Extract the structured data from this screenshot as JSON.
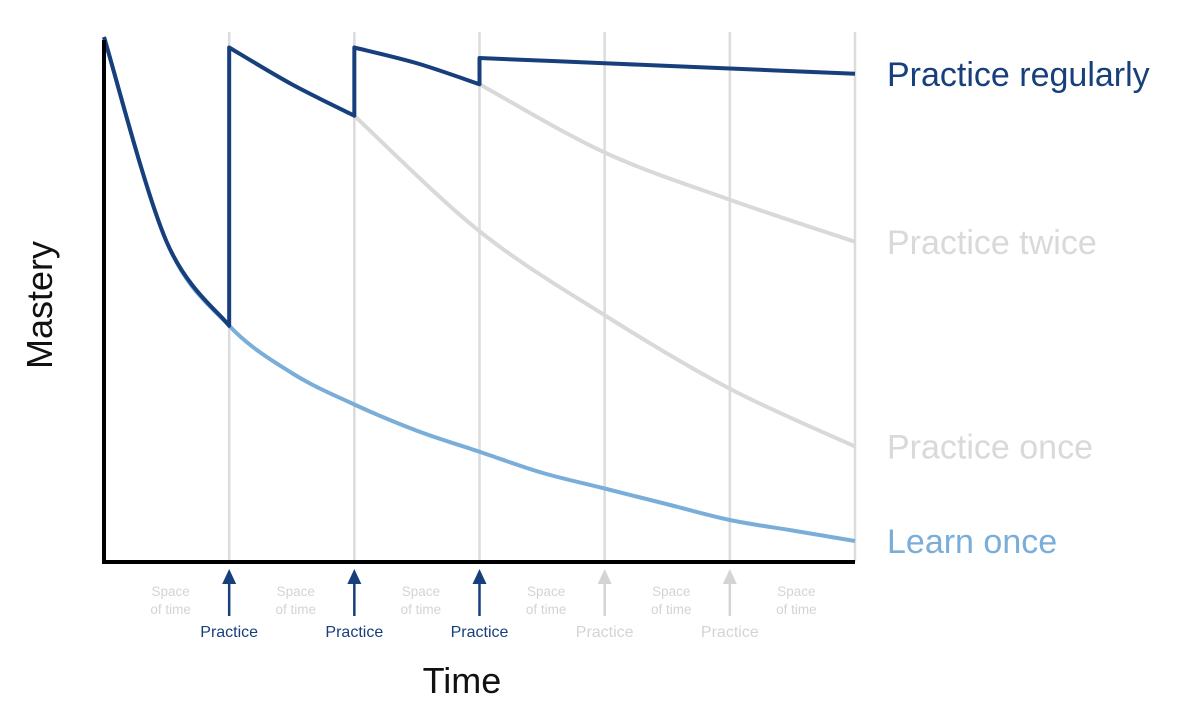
{
  "chart_data": {
    "type": "line",
    "title": "",
    "xlabel": "Time",
    "ylabel": "Mastery",
    "xlim": [
      0,
      6
    ],
    "ylim": [
      0,
      1
    ],
    "grid": "vertical lines at each practice point",
    "practice_points": [
      1,
      2,
      3,
      4,
      5
    ],
    "x_annotations": {
      "gaps": [
        "Space of time",
        "Space of time",
        "Space of time",
        "Space of time",
        "Space of time",
        "Space of time"
      ],
      "practices": [
        {
          "label": "Practice",
          "x": 1,
          "active": true
        },
        {
          "label": "Practice",
          "x": 2,
          "active": true
        },
        {
          "label": "Practice",
          "x": 3,
          "active": true
        },
        {
          "label": "Practice",
          "x": 4,
          "active": false
        },
        {
          "label": "Practice",
          "x": 5,
          "active": false
        }
      ]
    },
    "series": [
      {
        "name": "Learn once",
        "color": "#7aaed9",
        "x": [
          0.0,
          0.5,
          1.0,
          1.5,
          2.0,
          2.5,
          3.0,
          3.5,
          4.0,
          4.5,
          5.0,
          5.5,
          6.0
        ],
        "values": [
          1.0,
          0.61,
          0.45,
          0.36,
          0.3,
          0.25,
          0.21,
          0.17,
          0.14,
          0.11,
          0.08,
          0.06,
          0.04
        ]
      },
      {
        "name": "Practice once",
        "color": "#d9d9d9",
        "x": [
          2.0,
          3.0,
          4.0,
          5.0,
          6.0
        ],
        "values": [
          0.85,
          0.63,
          0.47,
          0.33,
          0.22
        ]
      },
      {
        "name": "Practice twice",
        "color": "#d9d9d9",
        "x": [
          3.0,
          4.0,
          5.0,
          6.0
        ],
        "values": [
          0.91,
          0.78,
          0.69,
          0.61
        ]
      },
      {
        "name": "Practice regularly",
        "color": "#173f7c",
        "x": [
          0.0,
          0.5,
          1.0,
          1.0,
          1.5,
          2.0,
          2.0,
          2.5,
          3.0,
          3.0,
          4.0,
          5.0,
          6.0
        ],
        "values": [
          1.0,
          0.61,
          0.45,
          0.98,
          0.91,
          0.85,
          0.98,
          0.95,
          0.91,
          0.96,
          0.95,
          0.94,
          0.93
        ]
      }
    ]
  }
}
